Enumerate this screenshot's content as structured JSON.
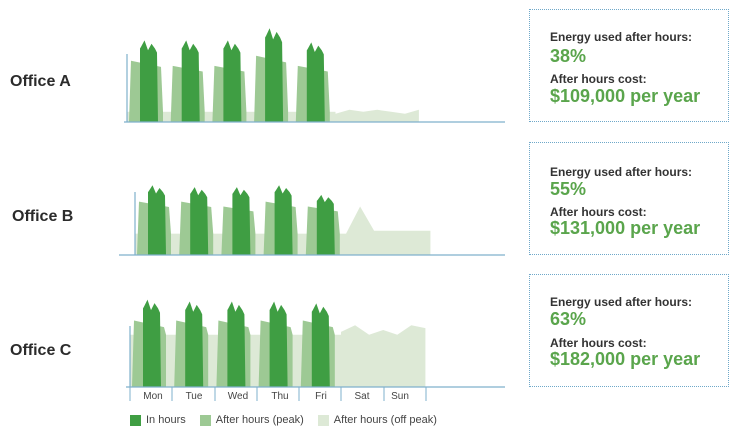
{
  "colors": {
    "in_hours": "#3f9e43",
    "after_peak": "#9dc994",
    "after_offpeak": "#dde9d6",
    "axis": "#7fb0cc"
  },
  "offices": [
    {
      "label": "Office A",
      "energy_label": "Energy used after hours:",
      "energy_pct": "38%",
      "cost_label": "After hours cost:",
      "cost": "$109,000 per year"
    },
    {
      "label": "Office B",
      "energy_label": "Energy used after hours:",
      "energy_pct": "55%",
      "cost_label": "After hours cost:",
      "cost": "$131,000 per year"
    },
    {
      "label": "Office C",
      "energy_label": "Energy used after hours:",
      "energy_pct": "63%",
      "cost_label": "After hours cost:",
      "cost": "$182,000 per year"
    }
  ],
  "legend": {
    "in_hours": "In hours",
    "after_peak": "After hours (peak)",
    "after_offpeak": "After hours (off peak)"
  },
  "chart_data": {
    "type": "area",
    "categories": [
      "Mon",
      "Tue",
      "Wed",
      "Thu",
      "Fri",
      "Sat",
      "Sun"
    ],
    "series_names": [
      "In hours",
      "After hours (peak)",
      "After hours (off peak)"
    ],
    "offices": [
      {
        "name": "Office A",
        "offpeak": 0.1,
        "peak": [
          0.6,
          0.55,
          0.55,
          0.65,
          0.55
        ],
        "weekend": [
          0.08,
          0.12,
          0.1,
          0.12,
          0.1,
          0.08,
          0.12
        ],
        "inhours": [
          0.8,
          0.8,
          0.8,
          0.92,
          0.78
        ]
      },
      {
        "name": "Office B",
        "offpeak": 0.22,
        "peak": [
          0.55,
          0.55,
          0.5,
          0.55,
          0.5
        ],
        "weekend": [
          0.22,
          0.5,
          0.25,
          0.25,
          0.25,
          0.25,
          0.25
        ],
        "inhours": [
          0.72,
          0.7,
          0.7,
          0.72,
          0.62
        ]
      },
      {
        "name": "Office C",
        "offpeak": 0.55,
        "peak": [
          0.7,
          0.7,
          0.7,
          0.7,
          0.7
        ],
        "weekend": [
          0.58,
          0.65,
          0.55,
          0.6,
          0.55,
          0.65,
          0.62
        ],
        "inhours": [
          0.92,
          0.9,
          0.9,
          0.9,
          0.88
        ]
      }
    ]
  }
}
